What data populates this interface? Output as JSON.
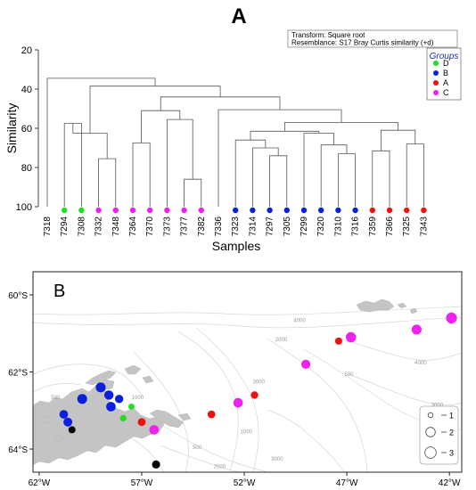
{
  "chart_data": [
    {
      "type": "dendrogram",
      "panel_label": "A",
      "ylabel": "Similarity",
      "xlabel": "Samples",
      "ylim": [
        20,
        100
      ],
      "yticks": [
        20,
        40,
        60,
        80,
        100
      ],
      "info_box": [
        "Transform: Square root",
        "Resemblance: S17 Bray Curtis similarity (+d)"
      ],
      "legend_title": "Groups",
      "groups": [
        {
          "name": "D",
          "color": "#22dd22"
        },
        {
          "name": "B",
          "color": "#0a20dd"
        },
        {
          "name": "A",
          "color": "#ee1111"
        },
        {
          "name": "C",
          "color": "#ee22ee"
        }
      ],
      "samples": [
        "7318",
        "7294",
        "7308",
        "7332",
        "7348",
        "7364",
        "7370",
        "7373",
        "7377",
        "7382",
        "7336",
        "7323",
        "7314",
        "7297",
        "7305",
        "7299",
        "7320",
        "7310",
        "7316",
        "7359",
        "7366",
        "7325",
        "7343"
      ],
      "sample_groups": [
        "",
        "D",
        "D",
        "C",
        "C",
        "C",
        "C",
        "C",
        "C",
        "C",
        "",
        "B",
        "B",
        "B",
        "B",
        "B",
        "B",
        "B",
        "B",
        "A",
        "A",
        "A",
        "A"
      ],
      "merges": [
        {
          "a": 1,
          "b": 2,
          "h": 57.5
        },
        {
          "a": 3,
          "b": 4,
          "h": 75.5
        },
        {
          "a": 5,
          "b": 6,
          "h": 67.5
        },
        {
          "a": 23,
          "b": 24,
          "h": 62.5
        },
        {
          "a": 8,
          "b": 9,
          "h": 86
        },
        {
          "a": 7,
          "b": 27,
          "h": 55.5
        },
        {
          "a": 25,
          "b": 28,
          "h": 51
        },
        {
          "a": 13,
          "b": 14,
          "h": 74
        },
        {
          "a": 12,
          "b": 30,
          "h": 70
        },
        {
          "a": 11,
          "b": 31,
          "h": 66
        },
        {
          "a": 17,
          "b": 18,
          "h": 73
        },
        {
          "a": 16,
          "b": 33,
          "h": 68.5
        },
        {
          "a": 15,
          "b": 34,
          "h": 62.5
        },
        {
          "a": 32,
          "b": 35,
          "h": 61.5
        },
        {
          "a": 21,
          "b": 22,
          "h": 68
        },
        {
          "a": 19,
          "b": 20,
          "h": 71.5
        },
        {
          "a": 37,
          "b": 38,
          "h": 61
        },
        {
          "a": 36,
          "b": 39,
          "h": 57
        },
        {
          "a": 10,
          "b": 40,
          "h": 50.5
        },
        {
          "a": 29,
          "b": 41,
          "h": 44
        },
        {
          "a": 26,
          "b": 42,
          "h": 38.5
        },
        {
          "a": 0,
          "b": 43,
          "h": 34.5
        }
      ]
    },
    {
      "type": "map",
      "panel_label": "B",
      "x_ticks": [
        -62,
        -57,
        -52,
        -47,
        -42
      ],
      "x_tick_labels": [
        "62°W",
        "57°W",
        "52°W",
        "47°W",
        "42°W"
      ],
      "y_ticks": [
        -60,
        -62,
        -64
      ],
      "y_tick_labels": [
        "60°S",
        "62°S",
        "64°S"
      ],
      "xlim": [
        -62.3,
        -41.4
      ],
      "ylim": [
        -64.6,
        -59.4
      ],
      "contour_labels": [
        {
          "text": "4000",
          "lon": -49.3,
          "lat": -60.7
        },
        {
          "text": "2000",
          "lon": -50.2,
          "lat": -61.2
        },
        {
          "text": "3000",
          "lon": -51.3,
          "lat": -62.3
        },
        {
          "text": "500",
          "lon": -46.9,
          "lat": -62.1
        },
        {
          "text": "4000",
          "lon": -43.4,
          "lat": -61.8
        },
        {
          "text": "3000",
          "lon": -42.6,
          "lat": -62.9
        },
        {
          "text": "1000",
          "lon": -57.2,
          "lat": -62.7
        },
        {
          "text": "500",
          "lon": -61.2,
          "lat": -62.7
        },
        {
          "text": "1000",
          "lon": -51.9,
          "lat": -63.6
        },
        {
          "text": "500",
          "lon": -54.3,
          "lat": -64.0
        },
        {
          "text": "3000",
          "lon": -50.4,
          "lat": -64.3
        },
        {
          "text": "2000",
          "lon": -53.2,
          "lat": -64.5
        }
      ],
      "size_legend": [
        {
          "label": "1",
          "value": 1
        },
        {
          "label": "2",
          "value": 2
        },
        {
          "label": "3",
          "value": 3
        }
      ],
      "points": [
        {
          "lon": -41.9,
          "lat": -60.6,
          "group": "C",
          "size": 2.8
        },
        {
          "lon": -43.6,
          "lat": -60.9,
          "group": "C",
          "size": 2.2
        },
        {
          "lon": -46.8,
          "lat": -61.1,
          "group": "C",
          "size": 2.4
        },
        {
          "lon": -47.4,
          "lat": -61.2,
          "group": "A",
          "size": 1
        },
        {
          "lon": -49.0,
          "lat": -61.8,
          "group": "C",
          "size": 1.8
        },
        {
          "lon": -51.5,
          "lat": -62.6,
          "group": "A",
          "size": 1.1
        },
        {
          "lon": -52.3,
          "lat": -62.8,
          "group": "C",
          "size": 2
        },
        {
          "lon": -53.6,
          "lat": -63.1,
          "group": "A",
          "size": 1.2
        },
        {
          "lon": -56.4,
          "lat": -63.5,
          "group": "C",
          "size": 2
        },
        {
          "lon": -57.0,
          "lat": -63.3,
          "group": "A",
          "size": 1.3
        },
        {
          "lon": -57.5,
          "lat": -62.9,
          "group": "D",
          "size": 0.7
        },
        {
          "lon": -57.9,
          "lat": -63.2,
          "group": "D",
          "size": 0.8
        },
        {
          "lon": -58.1,
          "lat": -62.7,
          "group": "B",
          "size": 1.5
        },
        {
          "lon": -58.6,
          "lat": -62.6,
          "group": "B",
          "size": 1.9
        },
        {
          "lon": -59.0,
          "lat": -62.4,
          "group": "B",
          "size": 2.2
        },
        {
          "lon": -58.5,
          "lat": -62.9,
          "group": "B",
          "size": 2
        },
        {
          "lon": -59.9,
          "lat": -62.7,
          "group": "B",
          "size": 2.2
        },
        {
          "lon": -60.8,
          "lat": -63.1,
          "group": "B",
          "size": 1.6
        },
        {
          "lon": -60.6,
          "lat": -63.3,
          "group": "B",
          "size": 1.7
        },
        {
          "lon": -60.4,
          "lat": -63.5,
          "group": "none",
          "size": 1
        },
        {
          "lon": -56.3,
          "lat": -64.4,
          "group": "none",
          "size": 1.4
        }
      ]
    }
  ]
}
